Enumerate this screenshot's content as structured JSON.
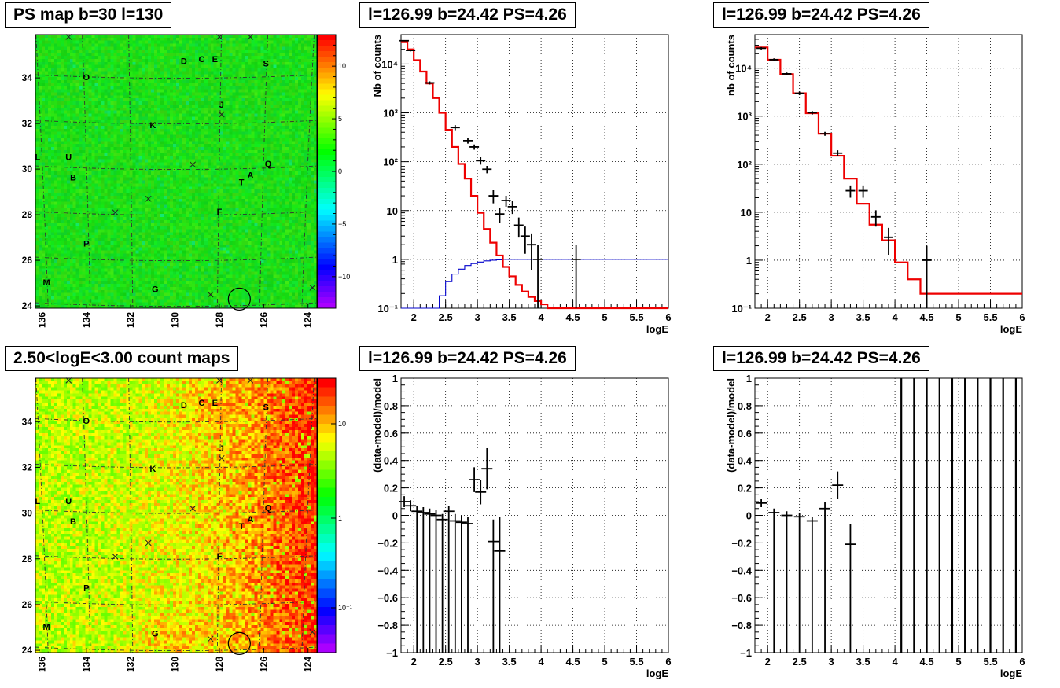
{
  "panels": {
    "p1": {
      "title": "PS map b=30 l=130"
    },
    "p2": {
      "title": "l=126.99 b=24.42 PS=4.26"
    },
    "p3": {
      "title": "l=126.99 b=24.42 PS=4.26"
    },
    "p4": {
      "title": "2.50<logE<3.00 count maps"
    },
    "p5": {
      "title": "l=126.99 b=24.42 PS=4.26"
    },
    "p6": {
      "title": "l=126.99 b=24.42 PS=4.26"
    }
  },
  "chart_data": [
    {
      "id": "ps-map",
      "type": "heatmap",
      "title": "PS map b=30 l=130",
      "x_ticks": [
        "136",
        "134",
        "132",
        "130",
        "128",
        "126",
        "124"
      ],
      "y_ticks": [
        "24",
        "26",
        "28",
        "30",
        "32",
        "34"
      ],
      "colorbar_ticks": [
        "10",
        "5",
        "0",
        "-5",
        "-10"
      ],
      "zlim": [
        -13,
        13
      ],
      "sources": [
        {
          "label": "D",
          "l": 129.6,
          "b": 34.6
        },
        {
          "label": "C",
          "l": 128.8,
          "b": 34.7
        },
        {
          "label": "E",
          "l": 128.2,
          "b": 34.7
        },
        {
          "label": "S",
          "l": 125.9,
          "b": 34.5
        },
        {
          "label": "O",
          "l": 134.0,
          "b": 33.9
        },
        {
          "label": "J",
          "l": 127.9,
          "b": 32.7
        },
        {
          "label": "K",
          "l": 131.0,
          "b": 31.8
        },
        {
          "label": "L",
          "l": 136.2,
          "b": 30.4
        },
        {
          "label": "U",
          "l": 134.8,
          "b": 30.4
        },
        {
          "label": "Q",
          "l": 125.8,
          "b": 30.1
        },
        {
          "label": "B",
          "l": 134.6,
          "b": 29.5
        },
        {
          "label": "A",
          "l": 126.6,
          "b": 29.6
        },
        {
          "label": "T",
          "l": 127.0,
          "b": 29.3
        },
        {
          "label": "F",
          "l": 128.0,
          "b": 28.0
        },
        {
          "label": "P",
          "l": 134.0,
          "b": 26.6
        },
        {
          "label": "M",
          "l": 135.8,
          "b": 24.9
        },
        {
          "label": "G",
          "l": 130.9,
          "b": 24.6
        }
      ],
      "crosses": [
        [
          134.8,
          35.8
        ],
        [
          128.0,
          35.8
        ],
        [
          126.6,
          35.8
        ],
        [
          127.9,
          32.4
        ],
        [
          129.2,
          30.2
        ],
        [
          131.2,
          28.7
        ],
        [
          132.7,
          28.1
        ],
        [
          128.4,
          24.5
        ],
        [
          123.8,
          24.8
        ]
      ],
      "circle": {
        "l": 127.1,
        "b": 24.3
      }
    },
    {
      "id": "spectrum-1",
      "type": "line",
      "title": "l=126.99 b=24.42 PS=4.26",
      "xlabel": "logE",
      "ylabel": "Nb of counts",
      "xlim": [
        1.8,
        6
      ],
      "ylim": [
        0.1,
        40000
      ],
      "yscale": "log",
      "x_ticks": [
        "2",
        "2.5",
        "3",
        "3.5",
        "4",
        "4.5",
        "5",
        "5.5",
        "6"
      ],
      "y_ticks": [
        "10⁻¹",
        "1",
        "10",
        "10²",
        "10³",
        "10⁴"
      ],
      "grid": true,
      "model": {
        "edges": [
          1.8,
          1.9,
          2.0,
          2.1,
          2.2,
          2.3,
          2.4,
          2.5,
          2.6,
          2.7,
          2.8,
          2.9,
          3.0,
          3.1,
          3.2,
          3.3,
          3.4,
          3.5,
          3.6,
          3.7,
          3.8,
          3.9,
          4.0,
          4.1,
          4.2,
          6.0
        ],
        "values": [
          28000,
          20000,
          12000,
          7000,
          4000,
          2000,
          1000,
          450,
          200,
          90,
          45,
          20,
          9,
          4.2,
          2.2,
          1.2,
          0.7,
          0.45,
          0.3,
          0.22,
          0.17,
          0.14,
          0.12,
          0.1,
          0.1
        ]
      },
      "data": [
        {
          "x": 1.85,
          "y": 30000,
          "e": 1000
        },
        {
          "x": 1.95,
          "y": 19000,
          "e": 800
        },
        {
          "x": 2.25,
          "y": 4100,
          "e": 300
        },
        {
          "x": 2.65,
          "y": 500,
          "e": 60
        },
        {
          "x": 2.85,
          "y": 270,
          "e": 35
        },
        {
          "x": 2.95,
          "y": 200,
          "e": 25
        },
        {
          "x": 3.05,
          "y": 105,
          "e": 18
        },
        {
          "x": 3.15,
          "y": 70,
          "e": 12
        },
        {
          "x": 3.25,
          "y": 20,
          "e": 6
        },
        {
          "x": 3.35,
          "y": 8.5,
          "e": 3
        },
        {
          "x": 3.45,
          "y": 16,
          "e": 4
        },
        {
          "x": 3.55,
          "y": 12,
          "e": 3.5
        },
        {
          "x": 3.65,
          "y": 5,
          "e": 2.2
        },
        {
          "x": 3.75,
          "y": 3,
          "e": 1.7
        },
        {
          "x": 3.85,
          "y": 2,
          "e": 1.4
        },
        {
          "x": 3.95,
          "y": 1,
          "e": 1
        },
        {
          "x": 4.55,
          "y": 1,
          "e": 1
        }
      ],
      "efficiency": {
        "edges": [
          1.8,
          2.3,
          2.4,
          2.5,
          2.6,
          2.7,
          2.8,
          2.9,
          3.0,
          3.1,
          3.2,
          3.3,
          3.4,
          6.0
        ],
        "values": [
          0.1,
          0.1,
          0.18,
          0.35,
          0.5,
          0.63,
          0.75,
          0.82,
          0.88,
          0.93,
          0.96,
          0.98,
          1.0
        ]
      }
    },
    {
      "id": "spectrum-2",
      "type": "line",
      "title": "l=126.99 b=24.42 PS=4.26",
      "xlabel": "logE",
      "ylabel": "nb of counts",
      "xlim": [
        1.8,
        6
      ],
      "ylim": [
        0.1,
        50000
      ],
      "yscale": "log",
      "x_ticks": [
        "2",
        "2.5",
        "3",
        "3.5",
        "4",
        "4.5",
        "5",
        "5.5",
        "6"
      ],
      "y_ticks": [
        "10⁻¹",
        "1",
        "10",
        "10²",
        "10³",
        "10⁴"
      ],
      "grid": true,
      "model": {
        "edges": [
          1.8,
          2.0,
          2.2,
          2.4,
          2.6,
          2.8,
          3.0,
          3.2,
          3.4,
          3.6,
          3.8,
          4.0,
          4.2,
          4.4,
          6.0
        ],
        "values": [
          27000,
          15000,
          7500,
          3000,
          1150,
          430,
          150,
          50,
          15,
          5.5,
          2.6,
          0.9,
          0.4,
          0.2
        ]
      },
      "data": [
        {
          "x": 1.9,
          "y": 26000,
          "e": 1500
        },
        {
          "x": 2.1,
          "y": 15000,
          "e": 1000
        },
        {
          "x": 2.3,
          "y": 7600,
          "e": 500
        },
        {
          "x": 2.5,
          "y": 3000,
          "e": 250
        },
        {
          "x": 2.7,
          "y": 1180,
          "e": 100
        },
        {
          "x": 2.9,
          "y": 430,
          "e": 40
        },
        {
          "x": 3.1,
          "y": 170,
          "e": 25
        },
        {
          "x": 3.3,
          "y": 28,
          "e": 8
        },
        {
          "x": 3.5,
          "y": 28,
          "e": 8
        },
        {
          "x": 3.7,
          "y": 8,
          "e": 3
        },
        {
          "x": 3.9,
          "y": 3,
          "e": 1.7
        },
        {
          "x": 4.5,
          "y": 1,
          "e": 1
        }
      ]
    },
    {
      "id": "count-map",
      "type": "heatmap",
      "title": "2.50<logE<3.00 count maps",
      "x_ticks": [
        "136",
        "134",
        "132",
        "130",
        "128",
        "126",
        "124"
      ],
      "y_ticks": [
        "24",
        "26",
        "28",
        "30",
        "32",
        "34"
      ],
      "colorbar_ticks": [
        "10",
        "1",
        "10⁻¹"
      ],
      "zscale": "log"
    },
    {
      "id": "residual-1",
      "type": "scatter",
      "title": "l=126.99 b=24.42 PS=4.26",
      "xlabel": "logE",
      "ylabel": "(data-model)/model",
      "xlim": [
        1.8,
        6
      ],
      "ylim": [
        -1,
        1
      ],
      "x_ticks": [
        "2",
        "2.5",
        "3",
        "3.5",
        "4",
        "4.5",
        "5",
        "5.5",
        "6"
      ],
      "y_ticks": [
        "−1",
        "−0.8",
        "−0.6",
        "−0.4",
        "−0.2",
        "0",
        "0.2",
        "0.4",
        "0.6",
        "0.8",
        "1"
      ],
      "grid": true,
      "data": [
        {
          "x": 1.85,
          "y": 0.1,
          "e": 0.04
        },
        {
          "x": 1.95,
          "y": 0.07,
          "e": 0.04
        },
        {
          "x": 2.05,
          "y": 0.03,
          "e": 0.04
        },
        {
          "x": 2.15,
          "y": 0.02,
          "e": 0.04
        },
        {
          "x": 2.25,
          "y": 0.01,
          "e": 0.04
        },
        {
          "x": 2.35,
          "y": 0.0,
          "e": 0.04
        },
        {
          "x": 2.45,
          "y": -0.03,
          "e": 0.04
        },
        {
          "x": 2.55,
          "y": 0.03,
          "e": 0.04
        },
        {
          "x": 2.65,
          "y": -0.04,
          "e": 0.05
        },
        {
          "x": 2.75,
          "y": -0.05,
          "e": 0.05
        },
        {
          "x": 2.85,
          "y": -0.06,
          "e": 0.05
        },
        {
          "x": 2.95,
          "y": 0.26,
          "e": 0.09
        },
        {
          "x": 3.05,
          "y": 0.17,
          "e": 0.09
        },
        {
          "x": 3.15,
          "y": 0.34,
          "e": 0.15
        },
        {
          "x": 3.25,
          "y": -0.19,
          "e": 0.16
        },
        {
          "x": 3.35,
          "y": -0.26,
          "e": 0.25
        }
      ]
    },
    {
      "id": "residual-2",
      "type": "scatter",
      "title": "l=126.99 b=24.42 PS=4.26",
      "xlabel": "logE",
      "ylabel": "(data-model)/model",
      "xlim": [
        1.8,
        6
      ],
      "ylim": [
        -1,
        1
      ],
      "x_ticks": [
        "2",
        "2.5",
        "3",
        "3.5",
        "4",
        "4.5",
        "5",
        "5.5",
        "6"
      ],
      "y_ticks": [
        "−1",
        "−0.8",
        "−0.6",
        "−0.4",
        "−0.2",
        "0",
        "0.2",
        "0.4",
        "0.6",
        "0.8",
        "1"
      ],
      "grid": true,
      "data": [
        {
          "x": 1.9,
          "y": 0.09,
          "e": 0.03
        },
        {
          "x": 2.1,
          "y": 0.02,
          "e": 0.03
        },
        {
          "x": 2.3,
          "y": 0.0,
          "e": 0.03
        },
        {
          "x": 2.5,
          "y": -0.01,
          "e": 0.03
        },
        {
          "x": 2.7,
          "y": -0.04,
          "e": 0.03
        },
        {
          "x": 2.9,
          "y": 0.05,
          "e": 0.05
        },
        {
          "x": 3.1,
          "y": 0.22,
          "e": 0.1
        },
        {
          "x": 3.3,
          "y": -0.21,
          "e": 0.15
        }
      ],
      "full_bars": [
        4.1,
        4.3,
        4.5,
        4.7,
        4.9,
        5.1,
        5.3,
        5.5,
        5.7,
        5.9
      ]
    }
  ]
}
